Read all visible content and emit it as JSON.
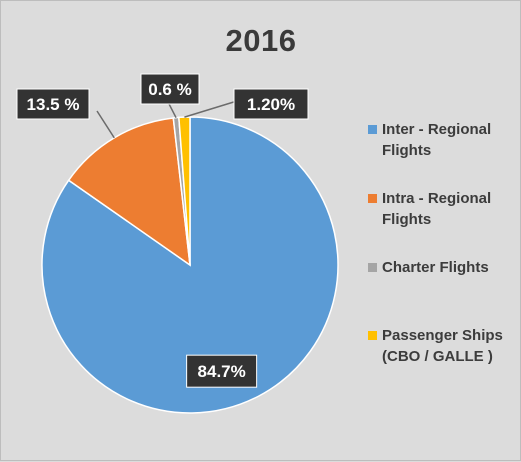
{
  "chart_data": {
    "type": "pie",
    "title": "2016",
    "categories": [
      "Inter - Regional Flights",
      "Intra - Regional Flights",
      "Charter Flights",
      "Passenger Ships (CBO / GALLE )"
    ],
    "values": [
      84.7,
      13.5,
      0.6,
      1.2
    ],
    "data_labels": [
      "84.7%",
      "13.5 %",
      "0.6 %",
      "1.20%"
    ],
    "colors": [
      "#5b9bd5",
      "#ed7d31",
      "#a5a5a5",
      "#ffc000"
    ],
    "legend": {
      "placement": "right",
      "entries": [
        {
          "line1": "Inter - Regional",
          "line2": "Flights"
        },
        {
          "line1": "Intra - Regional",
          "line2": "Flights"
        },
        {
          "line1": "Charter Flights",
          "line2": ""
        },
        {
          "line1": "Passenger Ships",
          "line2": "(CBO / GALLE  )"
        }
      ]
    }
  }
}
